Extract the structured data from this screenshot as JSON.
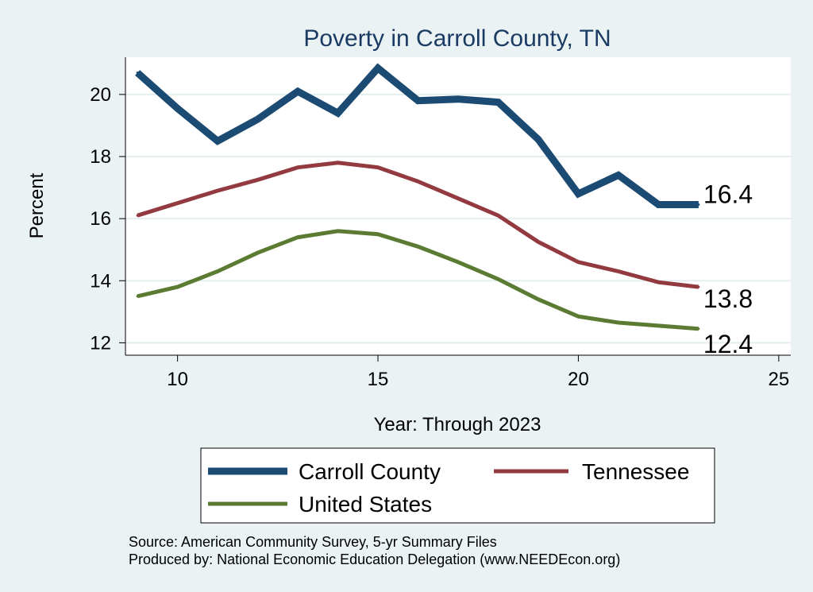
{
  "chart_data": {
    "type": "line",
    "title": "Poverty in Carroll County, TN",
    "xlabel": "Year: Through 2023",
    "ylabel": "Percent",
    "xlim": [
      8.7,
      25.3
    ],
    "ylim": [
      11.6,
      21.2
    ],
    "xticks": [
      10,
      15,
      20,
      25
    ],
    "yticks": [
      12,
      14,
      16,
      18,
      20
    ],
    "x": [
      9,
      10,
      11,
      12,
      13,
      14,
      15,
      16,
      17,
      18,
      19,
      20,
      21,
      22,
      23
    ],
    "series": [
      {
        "name": "Carroll County",
        "color": "#1b4a73",
        "values": [
          20.7,
          19.55,
          18.5,
          19.2,
          20.1,
          19.4,
          20.85,
          19.8,
          19.85,
          19.75,
          18.55,
          16.8,
          17.4,
          16.45,
          16.45
        ],
        "end_label": "16.4"
      },
      {
        "name": "Tennessee",
        "color": "#923a3f",
        "values": [
          16.1,
          16.5,
          16.9,
          17.25,
          17.65,
          17.8,
          17.65,
          17.2,
          16.65,
          16.1,
          15.25,
          14.6,
          14.3,
          13.95,
          13.8
        ],
        "end_label": "13.8"
      },
      {
        "name": "United States",
        "color": "#5b7b33",
        "values": [
          13.5,
          13.8,
          14.3,
          14.9,
          15.4,
          15.6,
          15.5,
          15.1,
          14.6,
          14.05,
          13.4,
          12.85,
          12.65,
          12.55,
          12.45
        ],
        "end_label": "12.4"
      }
    ],
    "legend": [
      "Carroll County",
      "Tennessee",
      "United States"
    ],
    "legend_position": "bottom",
    "grid": true
  },
  "notes": {
    "source": "Source: American Community Survey, 5-yr Summary Files",
    "produced_by": "Produced by: National Economic Education Delegation (www.NEEDEcon.org)"
  },
  "colors": {
    "background": "#eaf2f3",
    "plot_background": "#ffffff",
    "gridline": "#e4eeef",
    "title": "#1a3a63"
  }
}
